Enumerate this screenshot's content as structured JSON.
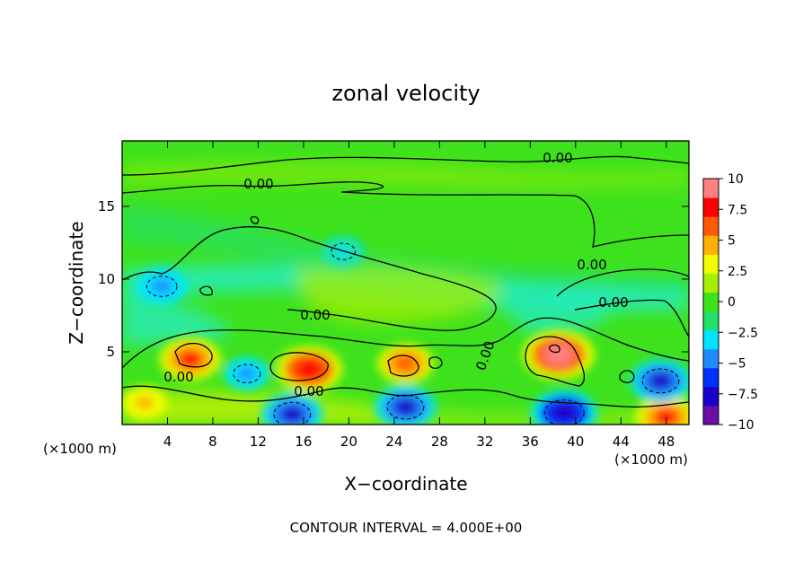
{
  "chart_data": {
    "type": "heatmap",
    "title": "zonal velocity",
    "xlabel": "X−coordinate",
    "ylabel": "Z−coordinate",
    "x_unit_left": "(×1000 m)",
    "x_unit_right": "(×1000 m)",
    "footer": "CONTOUR INTERVAL = 4.000E+00",
    "xlim": [
      0,
      50
    ],
    "ylim": [
      0,
      19.5
    ],
    "x_ticks": [
      4,
      8,
      12,
      16,
      20,
      24,
      28,
      32,
      36,
      40,
      44,
      48
    ],
    "y_ticks": [
      5,
      10,
      15
    ],
    "colorbar": {
      "range": [
        -10,
        10
      ],
      "tick_values": [
        10,
        7.5,
        5,
        2.5,
        0,
        -2.5,
        -5,
        -7.5,
        -10
      ],
      "tick_labels": [
        "10",
        "7.5",
        "5",
        "2.5",
        "0",
        "−2.5",
        "−5",
        "−7.5",
        "−10"
      ],
      "colors": [
        "#6a0fa8",
        "#1a00c8",
        "#0030ff",
        "#1f8cff",
        "#00e4ff",
        "#22e06a",
        "#3ee21c",
        "#a6ee00",
        "#f0ff00",
        "#ffb000",
        "#ff5a00",
        "#ff0000",
        "#ff8080"
      ]
    },
    "contour_labels": [
      "0.00",
      "0.00",
      "0.00",
      "0.00",
      "0.00",
      "0.00",
      "0.00",
      "0.00"
    ],
    "features": [
      {
        "sign": "positive",
        "x": 6,
        "z": 4.5,
        "value": 7
      },
      {
        "sign": "positive",
        "x": 16.5,
        "z": 3.8,
        "value": 8
      },
      {
        "sign": "positive",
        "x": 25,
        "z": 4.2,
        "value": 6
      },
      {
        "sign": "positive",
        "x": 38.5,
        "z": 4.8,
        "value": 9
      },
      {
        "sign": "positive",
        "x": 48,
        "z": 0.5,
        "value": 7
      },
      {
        "sign": "positive",
        "x": 2,
        "z": 1.5,
        "value": 4
      },
      {
        "sign": "negative",
        "x": 3.5,
        "z": 9.5,
        "value": -5
      },
      {
        "sign": "negative",
        "x": 11,
        "z": 3.5,
        "value": -4
      },
      {
        "sign": "negative",
        "x": 15,
        "z": 0.7,
        "value": -7
      },
      {
        "sign": "negative",
        "x": 25,
        "z": 1.2,
        "value": -7
      },
      {
        "sign": "negative",
        "x": 39,
        "z": 0.8,
        "value": -8
      },
      {
        "sign": "negative",
        "x": 47.5,
        "z": 3,
        "value": -7
      },
      {
        "sign": "negative",
        "x": 19.5,
        "z": 11.9,
        "value": -3
      }
    ]
  }
}
